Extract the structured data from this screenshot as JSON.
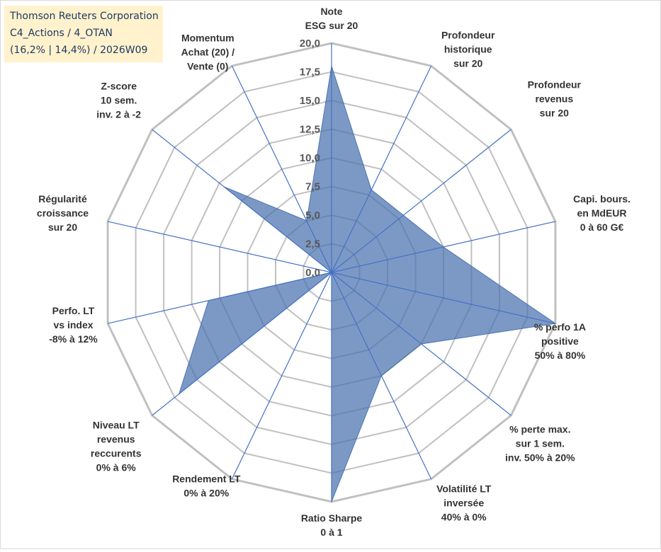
{
  "info_box": {
    "company": "Thomson Reuters Corporation",
    "portfolio": "C4_Actions / 4_OTAN",
    "stats": "(16,2% | 14,4%) / 2026W09"
  },
  "chart_data": {
    "type": "radar",
    "title": "Thomson Reuters Corporation",
    "range": [
      0,
      20
    ],
    "ticks": [
      "0,0",
      "2,5",
      "5,0",
      "7,5",
      "10,0",
      "12,5",
      "15,0",
      "17,5",
      "20,0"
    ],
    "tick_values": [
      0,
      2.5,
      5,
      7.5,
      10,
      12.5,
      15,
      17.5,
      20
    ],
    "axes": [
      {
        "label": [
          "Note",
          "ESG sur 20"
        ],
        "value": 18
      },
      {
        "label": [
          "Profondeur",
          "historique",
          "sur 20"
        ],
        "value": 8
      },
      {
        "label": [
          "Profondeur",
          "revenus",
          "sur 20"
        ],
        "value": 8
      },
      {
        "label": [
          "Capi. bours.",
          "en MdEUR",
          "0 à 60 G€"
        ],
        "value": 10
      },
      {
        "label": [
          "% perfo 1A",
          "positive",
          "50% à 80%"
        ],
        "value": 20
      },
      {
        "label": [
          "% perte max.",
          "sur 1 sem.",
          "inv. 50% à 20%"
        ],
        "value": 10
      },
      {
        "label": [
          "Volatilité LT",
          "inversée",
          "40% à 0%"
        ],
        "value": 10
      },
      {
        "label": [
          "Ratio Sharpe",
          "0 à 1"
        ],
        "value": 20
      },
      {
        "label": [
          "Rendement LT",
          "0% à 20%"
        ],
        "value": 0
      },
      {
        "label": [
          "Niveau LT",
          "revenus",
          "reccurents",
          "0% à 6%"
        ],
        "value": 17
      },
      {
        "label": [
          "Perfo. LT",
          "vs index",
          "-8% à 12%"
        ],
        "value": 11
      },
      {
        "label": [
          "Régularité",
          "croissance",
          "sur 20"
        ],
        "value": 0
      },
      {
        "label": [
          "Z-score",
          "10 sem.",
          "inv. 2 à -2"
        ],
        "value": 12
      },
      {
        "label": [
          "Momentum",
          "Achat (20) /",
          "Vente (0)"
        ],
        "value": 5
      }
    ],
    "colors": {
      "fill": "#4a72b0",
      "fill_opacity": 0.72,
      "stroke": "#4a72b0",
      "grid": "#c0c0c0",
      "spoke": "#4472c4"
    }
  }
}
